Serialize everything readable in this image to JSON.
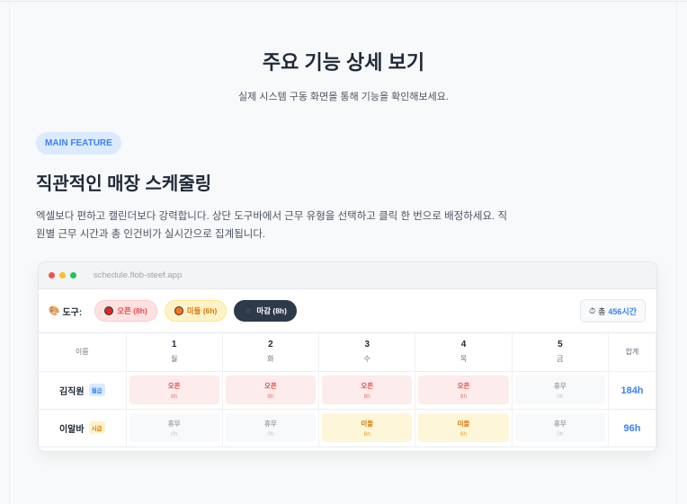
{
  "page": {
    "title": "주요 기능 상세 보기",
    "subtitle": "실제 시스템 구동 화면을 통해 기능을 확인해보세요."
  },
  "feature": {
    "badge": "MAIN FEATURE",
    "heading": "직관적인 매장 스케줄링",
    "description": "엑셀보다 편하고 캘린더보다 강력합니다. 상단 도구바에서 근무 유형을 선택하고 클릭 한 번으로 배정하세요. 직원별 근무 시간과 총 인건비가 실시간으로 집계됩니다."
  },
  "window": {
    "url": "schedule.flob-steef.app",
    "dots": [
      "#ef5350",
      "#fbbf24",
      "#22c55e"
    ]
  },
  "toolbar": {
    "icon": "palette-icon",
    "label": "도구:",
    "tools": [
      {
        "label": "오픈 (8h)",
        "color": "#dc2626",
        "bg": "#fee2e2",
        "border": "#fecaca",
        "text": "#ef4444",
        "selected": false
      },
      {
        "label": "미들 (6h)",
        "color": "#f97316",
        "bg": "#fef3c7",
        "border": "#fde68a",
        "text": "#d97706",
        "selected": false
      },
      {
        "label": "마감 (8h)",
        "color": "#374151",
        "bg": "#2d3a4b",
        "border": "#2d3a4b",
        "text": "#ffffff",
        "selected": true
      }
    ],
    "total_prefix": "총",
    "total_value": "456시간",
    "total_icon": "stopwatch-icon"
  },
  "table": {
    "name_header": "이름",
    "total_header": "합계",
    "days": [
      {
        "num": "1",
        "dow": "월"
      },
      {
        "num": "2",
        "dow": "화"
      },
      {
        "num": "3",
        "dow": "수"
      },
      {
        "num": "4",
        "dow": "목"
      },
      {
        "num": "5",
        "dow": "금"
      }
    ],
    "rows": [
      {
        "name": "김직원",
        "tag": "월급",
        "tag_type": "monthly",
        "total": "184h",
        "cells": [
          {
            "type": "open",
            "label": "오픈",
            "hours": "8h"
          },
          {
            "type": "open",
            "label": "오픈",
            "hours": "8h"
          },
          {
            "type": "open",
            "label": "오픈",
            "hours": "8h"
          },
          {
            "type": "open",
            "label": "오픈",
            "hours": "8h"
          },
          {
            "type": "off",
            "label": "휴무",
            "hours": "0h"
          }
        ]
      },
      {
        "name": "이알바",
        "tag": "시급",
        "tag_type": "hourly",
        "total": "96h",
        "cells": [
          {
            "type": "off",
            "label": "휴무",
            "hours": "0h"
          },
          {
            "type": "off",
            "label": "휴무",
            "hours": "0h"
          },
          {
            "type": "middle",
            "label": "미들",
            "hours": "6h"
          },
          {
            "type": "middle",
            "label": "미들",
            "hours": "6h"
          },
          {
            "type": "off",
            "label": "휴무",
            "hours": "0h"
          }
        ]
      }
    ]
  }
}
